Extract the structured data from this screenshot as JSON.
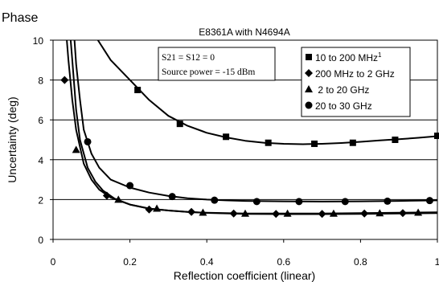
{
  "chart_data": {
    "type": "line",
    "heading": "Phase",
    "title": "E8361A with N4694A",
    "xlabel": "Reflection coefficient (linear)",
    "ylabel": "Uncertainty (deg)",
    "xlim": [
      0,
      1
    ],
    "ylim": [
      0,
      10
    ],
    "x_ticks": [
      {
        "value": 0,
        "label": "0"
      },
      {
        "value": 0.2,
        "label": "0.2"
      },
      {
        "value": 0.4,
        "label": "0.4"
      },
      {
        "value": 0.6,
        "label": "0.6"
      },
      {
        "value": 0.8,
        "label": "0.8"
      },
      {
        "value": 1,
        "label": "1"
      }
    ],
    "y_ticks": [
      {
        "value": 0,
        "label": "0"
      },
      {
        "value": 2,
        "label": "2"
      },
      {
        "value": 4,
        "label": "4"
      },
      {
        "value": 6,
        "label": "6"
      },
      {
        "value": 8,
        "label": "8"
      },
      {
        "value": 10,
        "label": "10"
      }
    ],
    "grid": "horizontal",
    "legend_position": "top-right",
    "annotation": {
      "lines": [
        "S21 = S12 = 0",
        "Source power = -15 dBm"
      ]
    },
    "series": [
      {
        "name": "10 to 200 MHz",
        "superscript": "1",
        "marker": "square",
        "curve": [
          [
            0.11,
            10.2
          ],
          [
            0.15,
            9.0
          ],
          [
            0.2,
            8.0
          ],
          [
            0.25,
            7.0
          ],
          [
            0.3,
            6.2
          ],
          [
            0.35,
            5.7
          ],
          [
            0.4,
            5.35
          ],
          [
            0.45,
            5.12
          ],
          [
            0.5,
            4.95
          ],
          [
            0.55,
            4.85
          ],
          [
            0.6,
            4.8
          ],
          [
            0.65,
            4.78
          ],
          [
            0.7,
            4.8
          ],
          [
            0.75,
            4.84
          ],
          [
            0.8,
            4.9
          ],
          [
            0.85,
            4.97
          ],
          [
            0.9,
            5.03
          ],
          [
            0.95,
            5.1
          ],
          [
            1.0,
            5.18
          ]
        ],
        "markers": [
          [
            0.22,
            7.5
          ],
          [
            0.33,
            5.8
          ],
          [
            0.45,
            5.15
          ],
          [
            0.56,
            4.85
          ],
          [
            0.68,
            4.8
          ],
          [
            0.78,
            4.85
          ],
          [
            0.89,
            5.0
          ],
          [
            1.0,
            5.2
          ]
        ]
      },
      {
        "name": "200 MHz to 2 GHz",
        "marker": "diamond",
        "curve": [
          [
            0.035,
            10.2
          ],
          [
            0.04,
            9.0
          ],
          [
            0.05,
            7.0
          ],
          [
            0.06,
            5.5
          ],
          [
            0.08,
            3.8
          ],
          [
            0.1,
            3.0
          ],
          [
            0.12,
            2.5
          ],
          [
            0.15,
            2.1
          ],
          [
            0.2,
            1.75
          ],
          [
            0.25,
            1.55
          ],
          [
            0.3,
            1.45
          ],
          [
            0.35,
            1.38
          ],
          [
            0.4,
            1.33
          ],
          [
            0.5,
            1.28
          ],
          [
            0.6,
            1.27
          ],
          [
            0.7,
            1.27
          ],
          [
            0.8,
            1.28
          ],
          [
            0.9,
            1.3
          ],
          [
            1.0,
            1.32
          ]
        ],
        "markers": [
          [
            0.03,
            8.0
          ],
          [
            0.14,
            2.2
          ],
          [
            0.25,
            1.5
          ],
          [
            0.36,
            1.38
          ],
          [
            0.47,
            1.3
          ],
          [
            0.58,
            1.28
          ],
          [
            0.7,
            1.28
          ],
          [
            0.81,
            1.3
          ],
          [
            0.91,
            1.32
          ]
        ]
      },
      {
        "name": "2 to 20 GHz",
        "marker": "triangle",
        "curve": [
          [
            0.045,
            10.2
          ],
          [
            0.05,
            9.0
          ],
          [
            0.06,
            6.5
          ],
          [
            0.07,
            5.0
          ],
          [
            0.09,
            3.6
          ],
          [
            0.11,
            2.9
          ],
          [
            0.13,
            2.45
          ],
          [
            0.16,
            2.05
          ],
          [
            0.2,
            1.75
          ],
          [
            0.25,
            1.55
          ],
          [
            0.3,
            1.45
          ],
          [
            0.35,
            1.38
          ],
          [
            0.4,
            1.34
          ],
          [
            0.5,
            1.3
          ],
          [
            0.6,
            1.3
          ],
          [
            0.7,
            1.3
          ],
          [
            0.8,
            1.32
          ],
          [
            0.9,
            1.34
          ],
          [
            1.0,
            1.36
          ]
        ],
        "markers": [
          [
            0.06,
            4.5
          ],
          [
            0.17,
            2.0
          ],
          [
            0.27,
            1.55
          ],
          [
            0.39,
            1.35
          ],
          [
            0.5,
            1.3
          ],
          [
            0.61,
            1.3
          ],
          [
            0.73,
            1.3
          ],
          [
            0.85,
            1.32
          ],
          [
            0.95,
            1.35
          ]
        ]
      },
      {
        "name": "20 to 30 GHz",
        "marker": "circle",
        "curve": [
          [
            0.055,
            10.2
          ],
          [
            0.06,
            8.8
          ],
          [
            0.07,
            7.0
          ],
          [
            0.08,
            5.5
          ],
          [
            0.1,
            4.3
          ],
          [
            0.12,
            3.6
          ],
          [
            0.15,
            3.0
          ],
          [
            0.2,
            2.6
          ],
          [
            0.25,
            2.35
          ],
          [
            0.3,
            2.18
          ],
          [
            0.35,
            2.07
          ],
          [
            0.4,
            2.0
          ],
          [
            0.45,
            1.96
          ],
          [
            0.5,
            1.93
          ],
          [
            0.6,
            1.91
          ],
          [
            0.7,
            1.9
          ],
          [
            0.8,
            1.91
          ],
          [
            0.9,
            1.93
          ],
          [
            1.0,
            1.96
          ]
        ],
        "markers": [
          [
            0.09,
            4.9
          ],
          [
            0.2,
            2.7
          ],
          [
            0.31,
            2.15
          ],
          [
            0.42,
            1.97
          ],
          [
            0.53,
            1.9
          ],
          [
            0.64,
            1.9
          ],
          [
            0.76,
            1.9
          ],
          [
            0.87,
            1.92
          ],
          [
            0.98,
            1.95
          ]
        ]
      }
    ]
  }
}
